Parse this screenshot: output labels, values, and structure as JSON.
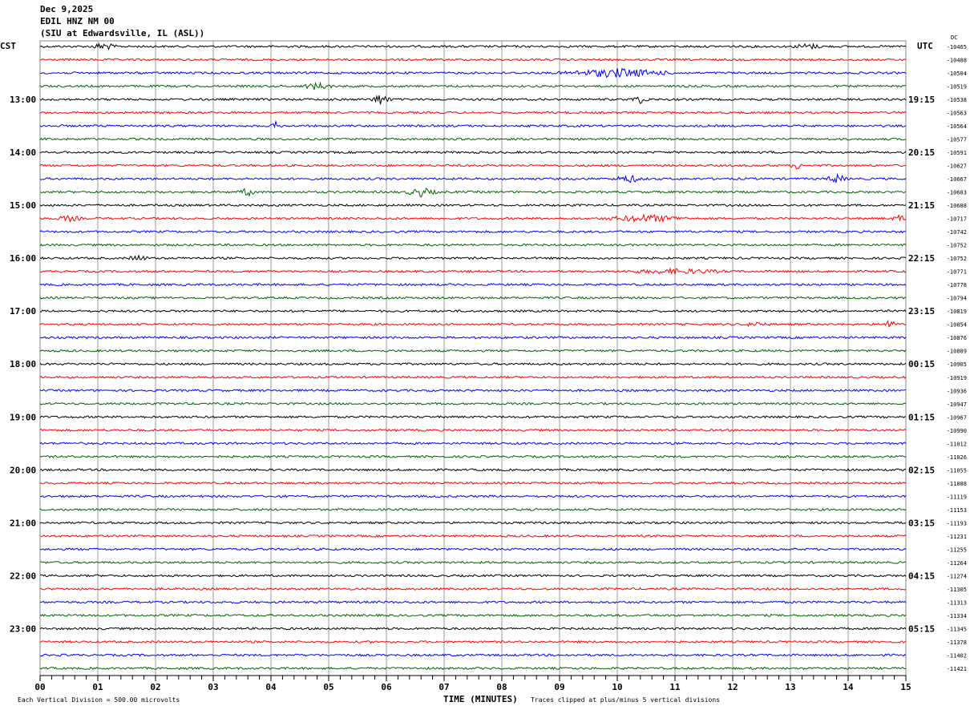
{
  "header": {
    "date": "Dec 9,2025",
    "station": "EDIL HNZ NM 00",
    "location": "(SIU at Edwardsville, IL  (ASL))"
  },
  "chart_data": {
    "type": "line",
    "title": "EDIL HNZ NM 00 helicorder",
    "xlabel": "TIME (MINUTES)",
    "xlim": [
      0,
      15
    ],
    "x_ticks": [
      "00",
      "01",
      "02",
      "03",
      "04",
      "05",
      "06",
      "07",
      "08",
      "09",
      "10",
      "11",
      "12",
      "13",
      "14",
      "15"
    ],
    "left_axis_label": "CST",
    "right_axis_label": "UTC",
    "dc_label": "DC",
    "left_hour_labels": [
      "13:00",
      "14:00",
      "15:00",
      "16:00",
      "17:00",
      "18:00",
      "19:00",
      "20:00",
      "21:00",
      "22:00",
      "23:00"
    ],
    "right_hour_labels": [
      "19:15",
      "20:15",
      "21:15",
      "22:15",
      "23:15",
      "00:15",
      "01:15",
      "02:15",
      "03:15",
      "04:15",
      "05:15"
    ],
    "trace_colors": [
      "#000000",
      "#ff0000",
      "#0000ff",
      "#006400"
    ],
    "dc_offsets": [
      -10465,
      -10488,
      -10504,
      -10519,
      -10538,
      -10563,
      -10564,
      -10577,
      -10591,
      -10627,
      -10667,
      -10683,
      -10688,
      -10717,
      -10742,
      -10752,
      -10752,
      -10771,
      -10778,
      -10794,
      -10819,
      -10854,
      -10876,
      -10889,
      -10905,
      -10919,
      -10936,
      -10947,
      -10967,
      -10990,
      -11012,
      -11026,
      -11055,
      -11088,
      -11119,
      -11153,
      -11193,
      -11231,
      -11255,
      -11264,
      -11274,
      -11305,
      -11313,
      -11334,
      -11345,
      -11378,
      -11402,
      -11421
    ],
    "events": [
      {
        "trace": 0,
        "minute": 1.1,
        "width": 0.5,
        "amp": 4
      },
      {
        "trace": 0,
        "minute": 13.3,
        "width": 0.6,
        "amp": 3
      },
      {
        "trace": 2,
        "minute": 10.0,
        "width": 2.2,
        "amp": 5
      },
      {
        "trace": 3,
        "minute": 4.8,
        "width": 0.6,
        "amp": 4
      },
      {
        "trace": 4,
        "minute": 5.9,
        "width": 0.4,
        "amp": 6
      },
      {
        "trace": 4,
        "minute": 10.4,
        "width": 0.4,
        "amp": 4
      },
      {
        "trace": 6,
        "minute": 4.1,
        "width": 0.2,
        "amp": 5
      },
      {
        "trace": 9,
        "minute": 13.1,
        "width": 0.2,
        "amp": 5
      },
      {
        "trace": 10,
        "minute": 10.2,
        "width": 0.6,
        "amp": 4
      },
      {
        "trace": 10,
        "minute": 13.8,
        "width": 0.4,
        "amp": 5
      },
      {
        "trace": 11,
        "minute": 3.6,
        "width": 0.4,
        "amp": 4
      },
      {
        "trace": 11,
        "minute": 6.6,
        "width": 0.6,
        "amp": 5
      },
      {
        "trace": 13,
        "minute": 0.5,
        "width": 0.5,
        "amp": 3
      },
      {
        "trace": 13,
        "minute": 10.5,
        "width": 1.6,
        "amp": 4
      },
      {
        "trace": 13,
        "minute": 14.9,
        "width": 0.3,
        "amp": 4
      },
      {
        "trace": 16,
        "minute": 1.7,
        "width": 0.4,
        "amp": 3
      },
      {
        "trace": 17,
        "minute": 11.0,
        "width": 2.0,
        "amp": 2.5
      },
      {
        "trace": 21,
        "minute": 12.4,
        "width": 0.4,
        "amp": 3
      },
      {
        "trace": 21,
        "minute": 14.7,
        "width": 0.3,
        "amp": 5
      }
    ]
  },
  "footer": {
    "scale_note": "Each Vertical Division =  500.00 microvolts",
    "clip_note": "Traces clipped at plus/minus 5 vertical divisions"
  }
}
